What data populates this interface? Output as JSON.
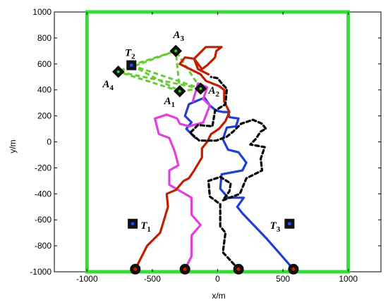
{
  "chart_data": {
    "type": "line",
    "title": "",
    "xlabel": "x/m",
    "ylabel": "y/m",
    "xlim": [
      -1250,
      1250
    ],
    "ylim": [
      -1000,
      1000
    ],
    "xticks": [
      -1000,
      -500,
      0,
      500,
      1000
    ],
    "yticks": [
      1000,
      800,
      600,
      400,
      200,
      0,
      -200,
      -400,
      -600,
      -800,
      -1000
    ],
    "boundary": {
      "x": [
        -1000,
        1000
      ],
      "y": [
        -1000,
        1000
      ],
      "color": "#33dd33"
    },
    "series": [
      {
        "color": "#1e3fd6",
        "dashed": false,
        "x": [
          580,
          380,
          190,
          150,
          200,
          80,
          20,
          30,
          190,
          220,
          160,
          80,
          40,
          70,
          140,
          160,
          90,
          80,
          40,
          -10,
          -60,
          -100,
          -150,
          -220,
          -250,
          -200,
          -240,
          -170
        ],
        "y": [
          -980,
          -750,
          -550,
          -500,
          -430,
          -430,
          -360,
          -250,
          -220,
          -160,
          -80,
          -60,
          20,
          110,
          120,
          180,
          190,
          230,
          230,
          240,
          280,
          340,
          320,
          290,
          200,
          150,
          100,
          30
        ]
      },
      {
        "color": "#e040e0",
        "dashed": false,
        "x": [
          -250,
          -200,
          -200,
          -130,
          -200,
          -200,
          -370,
          -370,
          -300,
          -330,
          -370,
          -450,
          -480,
          -390,
          -310,
          -290,
          -220,
          -110,
          -60,
          -110,
          -80,
          -150,
          -170,
          -190
        ],
        "y": [
          -980,
          -880,
          -720,
          -640,
          -560,
          -430,
          -330,
          -220,
          -180,
          -70,
          30,
          60,
          180,
          210,
          180,
          140,
          120,
          150,
          280,
          330,
          420,
          450,
          380,
          310
        ]
      },
      {
        "color": "#c02000",
        "dashed": false,
        "x": [
          -630,
          -540,
          -440,
          -380,
          -390,
          -320,
          -260,
          -220,
          -180,
          -120,
          -120,
          -80,
          -50,
          10,
          60,
          90,
          50,
          50,
          10,
          -40,
          -90,
          -130,
          -210,
          -290,
          -250,
          -180,
          -120,
          -80,
          -20,
          -10,
          30,
          -90,
          -140,
          -180,
          -150,
          -70
        ],
        "y": [
          -980,
          -800,
          -700,
          -500,
          -400,
          -370,
          -300,
          -280,
          -220,
          -120,
          -50,
          0,
          60,
          100,
          160,
          230,
          310,
          400,
          430,
          450,
          470,
          520,
          560,
          600,
          650,
          640,
          560,
          590,
          650,
          700,
          730,
          730,
          680,
          640,
          560,
          520
        ]
      },
      {
        "color": "#000000",
        "dashed": true,
        "x": [
          160,
          40,
          60,
          20,
          20,
          -60,
          -70,
          20,
          100,
          90,
          40,
          170,
          220,
          340,
          330,
          360,
          250,
          290,
          330,
          370,
          340,
          270,
          180,
          120,
          70,
          -10,
          -140,
          -210,
          -150,
          -40,
          -20,
          60,
          70,
          40,
          0,
          -50
        ],
        "y": [
          -980,
          -850,
          -700,
          -650,
          -480,
          -420,
          -300,
          -270,
          -320,
          -380,
          -450,
          -400,
          -280,
          -220,
          -130,
          -40,
          -20,
          20,
          80,
          100,
          140,
          170,
          140,
          80,
          40,
          10,
          10,
          70,
          130,
          120,
          240,
          290,
          410,
          440,
          490,
          500
        ]
      }
    ],
    "formation_edges": [
      [
        "A1",
        "A2"
      ],
      [
        "A1",
        "A3"
      ],
      [
        "A1",
        "A4"
      ],
      [
        "A2",
        "A3"
      ],
      [
        "A2",
        "A4"
      ],
      [
        "A3",
        "A4"
      ],
      [
        "T2",
        "A1"
      ],
      [
        "T2",
        "A2"
      ],
      [
        "T2",
        "A3"
      ],
      [
        "T2",
        "A4"
      ]
    ],
    "formation_edge_color": "#66cc33",
    "nodes": {
      "A1": {
        "x": -290,
        "y": 390
      },
      "A2": {
        "x": -130,
        "y": 410
      },
      "A3": {
        "x": -320,
        "y": 700
      },
      "A4": {
        "x": -760,
        "y": 540
      },
      "T2": {
        "x": -660,
        "y": 590
      }
    },
    "targets": [
      {
        "x": -660,
        "y": 590
      },
      {
        "x": -650,
        "y": -630
      },
      {
        "x": 550,
        "y": -630
      }
    ],
    "start_points": [
      {
        "x": -630,
        "y": -980
      },
      {
        "x": -250,
        "y": -980
      },
      {
        "x": 160,
        "y": -980
      },
      {
        "x": 580,
        "y": -980
      }
    ],
    "annotations": [
      {
        "letter": "A",
        "sub": "1",
        "x": -410,
        "y": 290
      },
      {
        "letter": "A",
        "sub": "2",
        "x": -70,
        "y": 370
      },
      {
        "letter": "A",
        "sub": "3",
        "x": -340,
        "y": 800
      },
      {
        "letter": "A",
        "sub": "4",
        "x": -880,
        "y": 420
      },
      {
        "letter": "T",
        "sub": "2",
        "x": -710,
        "y": 660
      },
      {
        "letter": "T",
        "sub": "1",
        "x": -590,
        "y": -670
      },
      {
        "letter": "T",
        "sub": "3",
        "x": 400,
        "y": -670
      }
    ]
  }
}
